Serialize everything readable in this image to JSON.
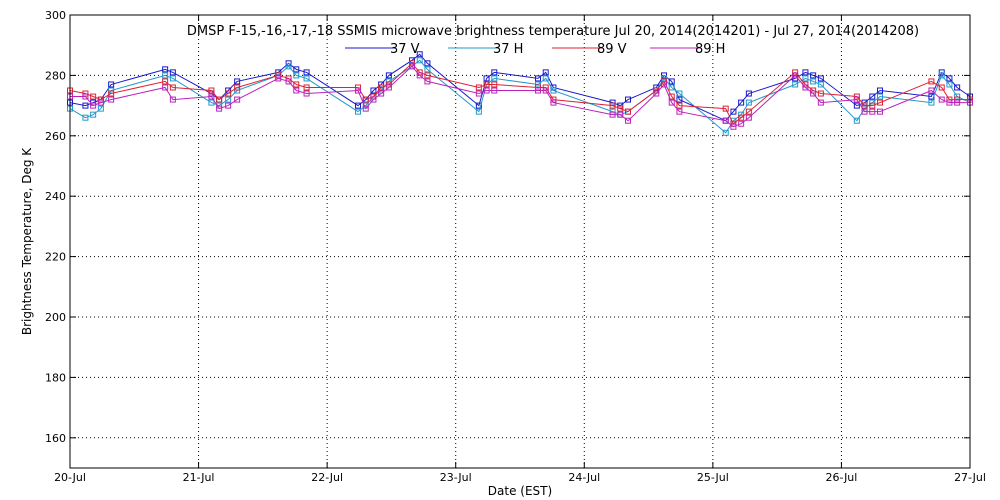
{
  "chart_data": {
    "type": "line",
    "title": "DMSP F-15,-16,-17,-18 SSMIS microwave brightness temperature Jul 20, 2014(2014201) - Jul 27, 2014(2014208)",
    "xlabel": "Date (EST)",
    "ylabel": "Brightness Temperature, Deg K",
    "xlim": [
      0,
      7
    ],
    "ylim": [
      150,
      300
    ],
    "yticks": [
      160,
      180,
      200,
      220,
      240,
      260,
      280,
      300
    ],
    "categories": [
      "20-Jul",
      "21-Jul",
      "22-Jul",
      "23-Jul",
      "24-Jul",
      "25-Jul",
      "26-Jul",
      "27-Jul"
    ],
    "grid": true,
    "legend_position": "top-center",
    "marker": "square",
    "series": [
      {
        "name": "37 V",
        "color": "#1a1acc",
        "x": [
          0.0,
          0.12,
          0.18,
          0.24,
          0.32,
          0.74,
          0.8,
          1.1,
          1.16,
          1.23,
          1.3,
          1.62,
          1.7,
          1.76,
          1.84,
          2.24,
          2.3,
          2.36,
          2.42,
          2.48,
          2.66,
          2.72,
          2.78,
          3.18,
          3.24,
          3.3,
          3.64,
          3.7,
          3.76,
          4.22,
          4.28,
          4.34,
          4.56,
          4.62,
          4.68,
          4.74,
          5.1,
          5.16,
          5.22,
          5.28,
          5.64,
          5.72,
          5.78,
          5.84,
          6.12,
          6.18,
          6.24,
          6.3,
          6.7,
          6.78,
          6.84,
          6.9,
          7.0
        ],
        "y": [
          271,
          270,
          271,
          272,
          277,
          282,
          281,
          274,
          272,
          275,
          278,
          281,
          284,
          282,
          281,
          270,
          272,
          275,
          277,
          280,
          285,
          287,
          284,
          270,
          279,
          281,
          279,
          281,
          276,
          271,
          270,
          272,
          276,
          280,
          278,
          272,
          265,
          268,
          271,
          274,
          279,
          281,
          280,
          279,
          270,
          271,
          273,
          275,
          273,
          281,
          279,
          276,
          273
        ]
      },
      {
        "name": "37 H",
        "color": "#2299cc",
        "x": [
          0.0,
          0.12,
          0.18,
          0.24,
          0.32,
          0.74,
          0.8,
          1.1,
          1.16,
          1.23,
          1.3,
          1.62,
          1.7,
          1.76,
          1.84,
          2.24,
          2.3,
          2.36,
          2.42,
          2.48,
          2.66,
          2.72,
          2.78,
          3.18,
          3.24,
          3.3,
          3.64,
          3.7,
          3.76,
          4.22,
          4.28,
          4.34,
          4.56,
          4.62,
          4.68,
          4.74,
          5.1,
          5.16,
          5.22,
          5.28,
          5.64,
          5.72,
          5.78,
          5.84,
          6.12,
          6.18,
          6.24,
          6.3,
          6.7,
          6.78,
          6.84,
          6.9,
          7.0
        ],
        "y": [
          269,
          266,
          267,
          269,
          275,
          280,
          279,
          271,
          270,
          272,
          275,
          280,
          283,
          280,
          279,
          268,
          270,
          273,
          275,
          278,
          283,
          285,
          282,
          268,
          277,
          279,
          277,
          279,
          275,
          268,
          267,
          268,
          275,
          279,
          276,
          274,
          261,
          265,
          267,
          271,
          277,
          279,
          278,
          277,
          265,
          269,
          271,
          273,
          271,
          280,
          277,
          273,
          271
        ]
      },
      {
        "name": "89 V",
        "color": "#dd2233",
        "x": [
          0.0,
          0.12,
          0.18,
          0.24,
          0.32,
          0.74,
          0.8,
          1.1,
          1.16,
          1.23,
          1.3,
          1.62,
          1.7,
          1.76,
          1.84,
          2.24,
          2.3,
          2.36,
          2.42,
          2.48,
          2.66,
          2.72,
          2.78,
          3.18,
          3.24,
          3.3,
          3.64,
          3.7,
          3.76,
          4.22,
          4.28,
          4.34,
          4.56,
          4.62,
          4.68,
          4.74,
          5.1,
          5.16,
          5.22,
          5.28,
          5.64,
          5.72,
          5.78,
          5.84,
          6.12,
          6.18,
          6.24,
          6.3,
          6.7,
          6.78,
          6.84,
          6.9,
          7.0
        ],
        "y": [
          275,
          274,
          273,
          272,
          274,
          278,
          276,
          275,
          272,
          274,
          276,
          280,
          279,
          277,
          276,
          276,
          272,
          273,
          276,
          277,
          284,
          281,
          280,
          276,
          277,
          277,
          276,
          276,
          272,
          270,
          269,
          268,
          275,
          278,
          273,
          270,
          269,
          264,
          266,
          268,
          281,
          277,
          275,
          274,
          273,
          270,
          270,
          271,
          278,
          276,
          272,
          272,
          272
        ]
      },
      {
        "name": "89 H",
        "color": "#bb22bb",
        "x": [
          0.0,
          0.12,
          0.18,
          0.24,
          0.32,
          0.74,
          0.8,
          1.1,
          1.16,
          1.23,
          1.3,
          1.62,
          1.7,
          1.76,
          1.84,
          2.24,
          2.3,
          2.36,
          2.42,
          2.48,
          2.66,
          2.72,
          2.78,
          3.18,
          3.24,
          3.3,
          3.64,
          3.7,
          3.76,
          4.22,
          4.28,
          4.34,
          4.56,
          4.62,
          4.68,
          4.74,
          5.1,
          5.16,
          5.22,
          5.28,
          5.64,
          5.72,
          5.78,
          5.84,
          6.12,
          6.18,
          6.24,
          6.3,
          6.7,
          6.78,
          6.84,
          6.9,
          7.0
        ],
        "y": [
          273,
          273,
          270,
          271,
          272,
          276,
          272,
          273,
          269,
          270,
          272,
          279,
          278,
          275,
          274,
          275,
          269,
          272,
          274,
          276,
          283,
          280,
          278,
          274,
          275,
          275,
          275,
          275,
          271,
          267,
          267,
          265,
          274,
          277,
          271,
          268,
          265,
          263,
          264,
          266,
          280,
          276,
          274,
          271,
          272,
          268,
          268,
          268,
          275,
          272,
          271,
          271,
          271
        ]
      }
    ]
  }
}
